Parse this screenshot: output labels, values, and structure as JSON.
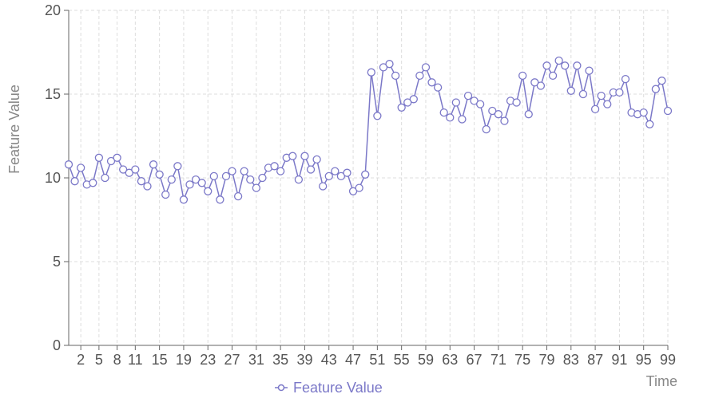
{
  "chart_data": {
    "type": "line",
    "title": "",
    "xlabel": "Time",
    "ylabel": "Feature Value",
    "xlim": [
      0,
      99
    ],
    "ylim": [
      0,
      20
    ],
    "grid": true,
    "legend_position": "bottom-center",
    "x_ticks": [
      2,
      5,
      8,
      11,
      15,
      19,
      23,
      27,
      31,
      35,
      39,
      43,
      47,
      51,
      55,
      59,
      63,
      67,
      71,
      75,
      79,
      83,
      87,
      91,
      95,
      99
    ],
    "y_ticks": [
      0,
      5,
      10,
      15,
      20
    ],
    "series": [
      {
        "name": "Feature Value",
        "color": "#7b78c8",
        "values": [
          10.8,
          9.8,
          10.6,
          9.6,
          9.7,
          11.2,
          10.0,
          11.0,
          11.2,
          10.5,
          10.3,
          10.5,
          9.8,
          9.5,
          10.8,
          10.2,
          9.0,
          9.9,
          10.7,
          8.7,
          9.6,
          9.9,
          9.7,
          9.2,
          10.1,
          8.7,
          10.1,
          10.4,
          8.9,
          10.4,
          9.9,
          9.4,
          10.0,
          10.6,
          10.7,
          10.4,
          11.2,
          11.3,
          9.9,
          11.3,
          10.5,
          11.1,
          9.5,
          10.1,
          10.4,
          10.1,
          10.3,
          9.2,
          9.4,
          10.2,
          16.3,
          13.7,
          16.6,
          16.8,
          16.1,
          14.2,
          14.5,
          14.7,
          16.1,
          16.6,
          15.7,
          15.4,
          13.9,
          13.6,
          14.5,
          13.5,
          14.9,
          14.6,
          14.4,
          12.9,
          14.0,
          13.8,
          13.4,
          14.6,
          14.5,
          16.1,
          13.8,
          15.7,
          15.5,
          16.7,
          16.1,
          17.0,
          16.7,
          15.2,
          16.7,
          15.0,
          16.4,
          14.1,
          14.9,
          14.4,
          15.1,
          15.1,
          15.9,
          13.9,
          13.8,
          13.9,
          13.2,
          15.3,
          15.8,
          14.0
        ]
      }
    ]
  }
}
